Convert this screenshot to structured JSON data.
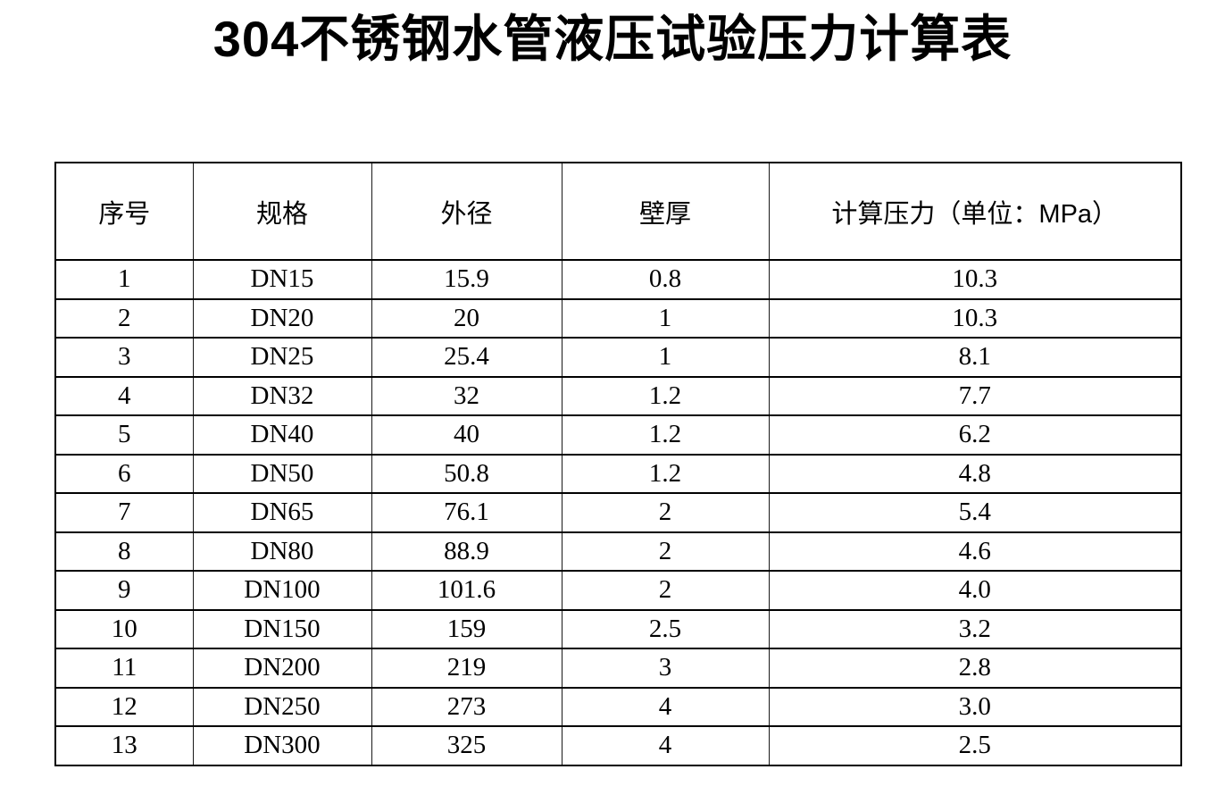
{
  "page": {
    "title": "304不锈钢水管液压试验压力计算表"
  },
  "table": {
    "headers": [
      "序号",
      "规格",
      "外径",
      "壁厚",
      "计算压力（单位：MPa）"
    ],
    "rows": [
      [
        "1",
        "DN15",
        "15.9",
        "0.8",
        "10.3"
      ],
      [
        "2",
        "DN20",
        "20",
        "1",
        "10.3"
      ],
      [
        "3",
        "DN25",
        "25.4",
        "1",
        "8.1"
      ],
      [
        "4",
        "DN32",
        "32",
        "1.2",
        "7.7"
      ],
      [
        "5",
        "DN40",
        "40",
        "1.2",
        "6.2"
      ],
      [
        "6",
        "DN50",
        "50.8",
        "1.2",
        "4.8"
      ],
      [
        "7",
        "DN65",
        "76.1",
        "2",
        "5.4"
      ],
      [
        "8",
        "DN80",
        "88.9",
        "2",
        "4.6"
      ],
      [
        "9",
        "DN100",
        "101.6",
        "2",
        "4.0"
      ],
      [
        "10",
        "DN150",
        "159",
        "2.5",
        "3.2"
      ],
      [
        "11",
        "DN200",
        "219",
        "3",
        "2.8"
      ],
      [
        "12",
        "DN250",
        "273",
        "4",
        "3.0"
      ],
      [
        "13",
        "DN300",
        "325",
        "4",
        "2.5"
      ]
    ]
  }
}
